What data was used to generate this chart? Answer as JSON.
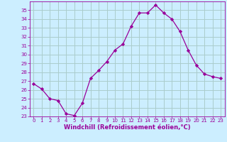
{
  "x": [
    0,
    1,
    2,
    3,
    4,
    5,
    6,
    7,
    8,
    9,
    10,
    11,
    12,
    13,
    14,
    15,
    16,
    17,
    18,
    19,
    20,
    21,
    22,
    23
  ],
  "y": [
    26.7,
    26.1,
    25.0,
    24.8,
    23.3,
    23.1,
    24.5,
    27.3,
    28.2,
    29.2,
    30.5,
    31.2,
    33.2,
    34.7,
    34.7,
    35.6,
    34.7,
    34.0,
    32.6,
    30.5,
    28.8,
    27.8,
    27.5,
    27.3
  ],
  "line_color": "#990099",
  "marker": "D",
  "marker_size": 2.2,
  "bg_color": "#cceeff",
  "grid_color": "#aacccc",
  "xlabel": "Windchill (Refroidissement éolien,°C)",
  "xlim": [
    -0.5,
    23.5
  ],
  "ylim": [
    23,
    36
  ],
  "yticks": [
    23,
    24,
    25,
    26,
    27,
    28,
    29,
    30,
    31,
    32,
    33,
    34,
    35
  ],
  "xticks": [
    0,
    1,
    2,
    3,
    4,
    5,
    6,
    7,
    8,
    9,
    10,
    11,
    12,
    13,
    14,
    15,
    16,
    17,
    18,
    19,
    20,
    21,
    22,
    23
  ],
  "tick_color": "#990099",
  "label_color": "#990099",
  "axis_color": "#990099",
  "tick_fontsize": 5.0,
  "xlabel_fontsize": 6.0
}
